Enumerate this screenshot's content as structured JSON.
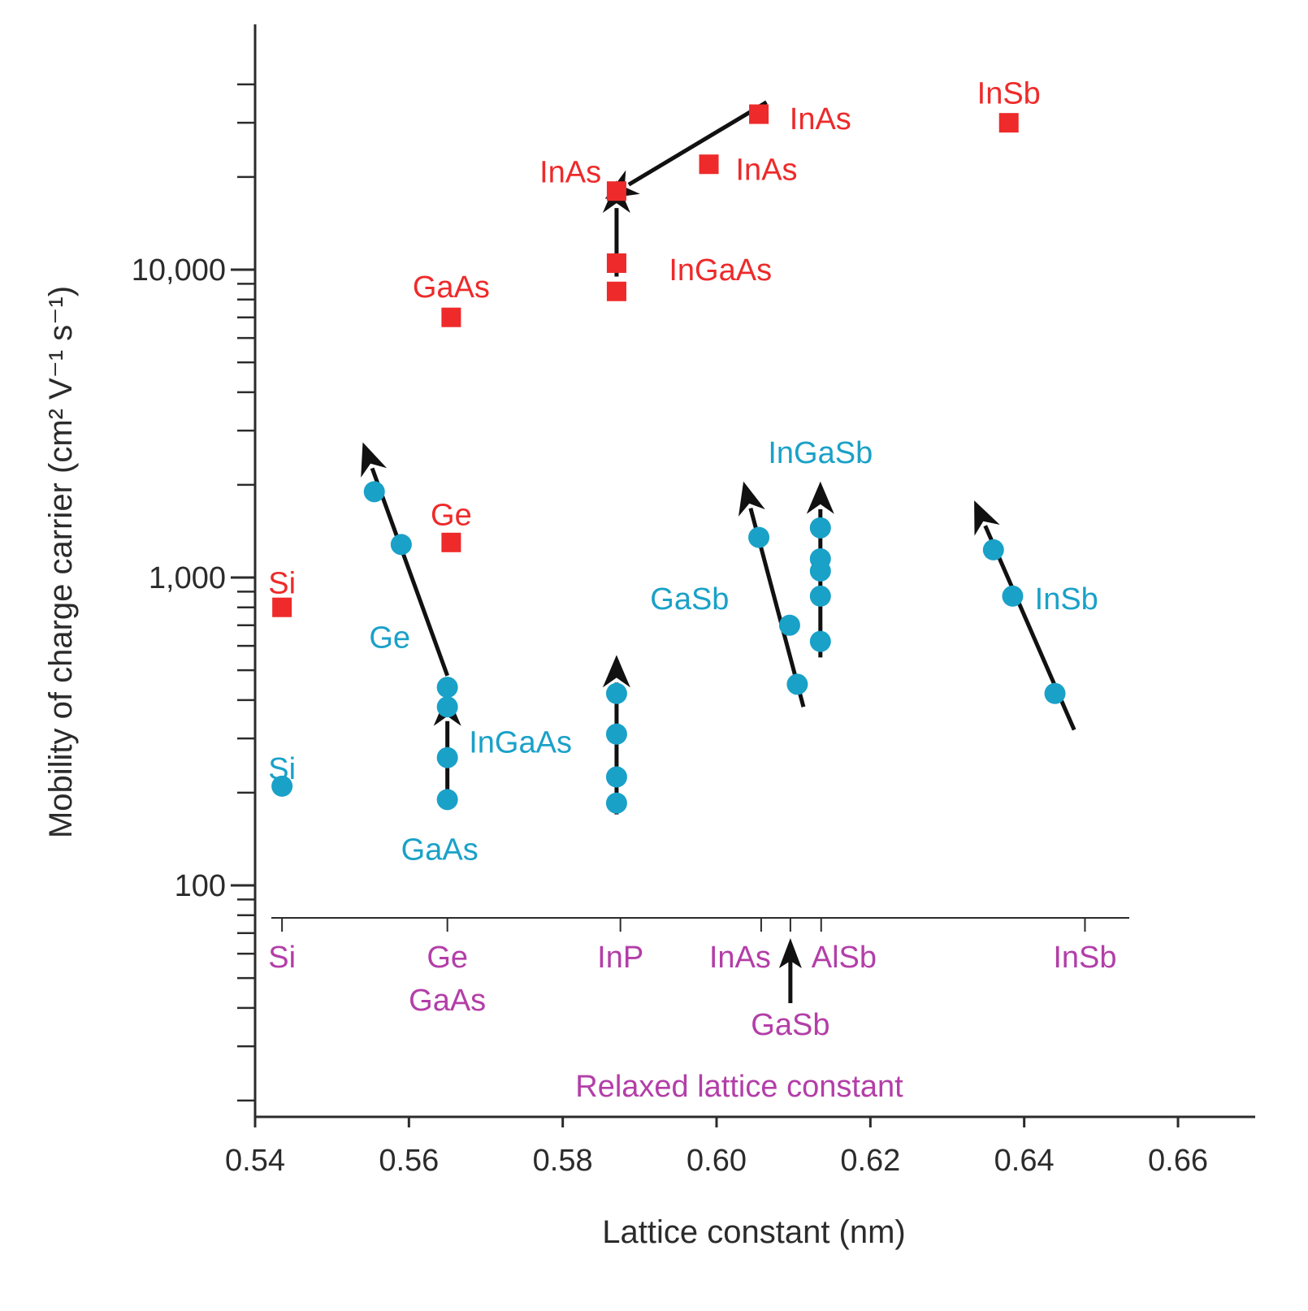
{
  "chart_data": {
    "type": "scatter",
    "xlabel": "Lattice constant (nm)",
    "ylabel": "Mobility of charge carrier (cm² V⁻¹ s⁻¹)",
    "xlim": [
      0.54,
      0.67
    ],
    "ylim": [
      20,
      60000
    ],
    "y_scale": "log",
    "x_ticks": [
      {
        "value": 0.54,
        "label": "0.54"
      },
      {
        "value": 0.56,
        "label": "0.56"
      },
      {
        "value": 0.58,
        "label": "0.58"
      },
      {
        "value": 0.6,
        "label": "0.60"
      },
      {
        "value": 0.62,
        "label": "0.62"
      },
      {
        "value": 0.64,
        "label": "0.64"
      },
      {
        "value": 0.66,
        "label": "0.66"
      }
    ],
    "y_ticks": [
      {
        "value": 100,
        "label": "100"
      },
      {
        "value": 1000,
        "label": "1,000"
      },
      {
        "value": 10000,
        "label": "10,000"
      }
    ],
    "colors": {
      "electron": "#ee2a2a",
      "hole": "#1aa1c8",
      "relaxed": "#b33ea8",
      "arrow": "#111111",
      "axis": "#2b2b2b"
    },
    "series": [
      {
        "marker": "square",
        "color": "#ee2a2a",
        "points": [
          {
            "x": 0.5435,
            "y": 800
          },
          {
            "x": 0.5655,
            "y": 1300
          },
          {
            "x": 0.5655,
            "y": 7000
          },
          {
            "x": 0.587,
            "y": 8500
          },
          {
            "x": 0.587,
            "y": 10500
          },
          {
            "x": 0.587,
            "y": 18000
          },
          {
            "x": 0.599,
            "y": 22000
          },
          {
            "x": 0.6055,
            "y": 32000
          },
          {
            "x": 0.638,
            "y": 30000
          }
        ]
      },
      {
        "marker": "circle",
        "color": "#1aa1c8",
        "points": [
          {
            "x": 0.5435,
            "y": 210
          },
          {
            "x": 0.5555,
            "y": 1900
          },
          {
            "x": 0.559,
            "y": 1280
          },
          {
            "x": 0.565,
            "y": 440
          },
          {
            "x": 0.565,
            "y": 380
          },
          {
            "x": 0.565,
            "y": 260
          },
          {
            "x": 0.565,
            "y": 190
          },
          {
            "x": 0.587,
            "y": 420
          },
          {
            "x": 0.587,
            "y": 310
          },
          {
            "x": 0.587,
            "y": 225
          },
          {
            "x": 0.587,
            "y": 185
          },
          {
            "x": 0.6055,
            "y": 1350
          },
          {
            "x": 0.6095,
            "y": 700
          },
          {
            "x": 0.6105,
            "y": 450
          },
          {
            "x": 0.6135,
            "y": 1450
          },
          {
            "x": 0.6135,
            "y": 1150
          },
          {
            "x": 0.6135,
            "y": 1050
          },
          {
            "x": 0.6135,
            "y": 870
          },
          {
            "x": 0.6135,
            "y": 620
          },
          {
            "x": 0.636,
            "y": 1230
          },
          {
            "x": 0.6385,
            "y": 870
          },
          {
            "x": 0.644,
            "y": 420
          }
        ]
      }
    ],
    "arrows": [
      {
        "from": [
          0.6065,
          35000
        ],
        "to": [
          0.5855,
          17000
        ]
      },
      {
        "from": [
          0.587,
          9500
        ],
        "to": [
          0.587,
          19500
        ]
      },
      {
        "from": [
          0.565,
          480
        ],
        "to": [
          0.554,
          2750
        ]
      },
      {
        "from": [
          0.565,
          200
        ],
        "to": [
          0.565,
          420
        ]
      },
      {
        "from": [
          0.587,
          170
        ],
        "to": [
          0.587,
          560
        ]
      },
      {
        "from": [
          0.6113,
          380
        ],
        "to": [
          0.6035,
          2050
        ]
      },
      {
        "from": [
          0.6135,
          550
        ],
        "to": [
          0.6135,
          2050
        ]
      },
      {
        "from": [
          0.6465,
          320
        ],
        "to": [
          0.6335,
          1780
        ]
      }
    ],
    "annotations": [
      {
        "text": "Si",
        "x": 0.5435,
        "y": 960,
        "color": "#ee2a2a"
      },
      {
        "text": "Ge",
        "x": 0.5655,
        "y": 1600,
        "color": "#ee2a2a"
      },
      {
        "text": "GaAs",
        "x": 0.5655,
        "y": 8800,
        "color": "#ee2a2a"
      },
      {
        "text": "InAs",
        "x": 0.581,
        "y": 20800,
        "color": "#ee2a2a"
      },
      {
        "text": "InGaAs",
        "x": 0.6005,
        "y": 10000,
        "color": "#ee2a2a"
      },
      {
        "text": "InAs",
        "x": 0.6065,
        "y": 21200,
        "color": "#ee2a2a"
      },
      {
        "text": "InAs",
        "x": 0.6135,
        "y": 31000,
        "color": "#ee2a2a"
      },
      {
        "text": "InSb",
        "x": 0.638,
        "y": 37500,
        "color": "#ee2a2a"
      },
      {
        "text": "Si",
        "x": 0.5435,
        "y": 240,
        "color": "#1aa1c8"
      },
      {
        "text": "Ge",
        "x": 0.5575,
        "y": 640,
        "color": "#1aa1c8"
      },
      {
        "text": "InGaAs",
        "x": 0.5745,
        "y": 292,
        "color": "#1aa1c8"
      },
      {
        "text": "GaAs",
        "x": 0.564,
        "y": 131,
        "color": "#1aa1c8"
      },
      {
        "text": "GaSb",
        "x": 0.5965,
        "y": 855,
        "color": "#1aa1c8"
      },
      {
        "text": "InGaSb",
        "x": 0.6135,
        "y": 2550,
        "color": "#1aa1c8"
      },
      {
        "text": "InSb",
        "x": 0.6455,
        "y": 855,
        "color": "#1aa1c8"
      }
    ],
    "relaxed_lattice": {
      "title": "Relaxed lattice constant",
      "ticks": [
        {
          "x": 0.5435,
          "labels": [
            "Si"
          ]
        },
        {
          "x": 0.565,
          "labels": [
            "Ge",
            "GaAs"
          ]
        },
        {
          "x": 0.5875,
          "labels": [
            "InP"
          ]
        },
        {
          "x": 0.6058,
          "labels": [
            "InAs"
          ]
        },
        {
          "x": 0.6096,
          "labels": []
        },
        {
          "x": 0.6136,
          "labels": [
            "AlSb"
          ]
        },
        {
          "x": 0.6479,
          "labels": [
            "InSb"
          ]
        }
      ],
      "gasb_label": "GaSb"
    }
  }
}
